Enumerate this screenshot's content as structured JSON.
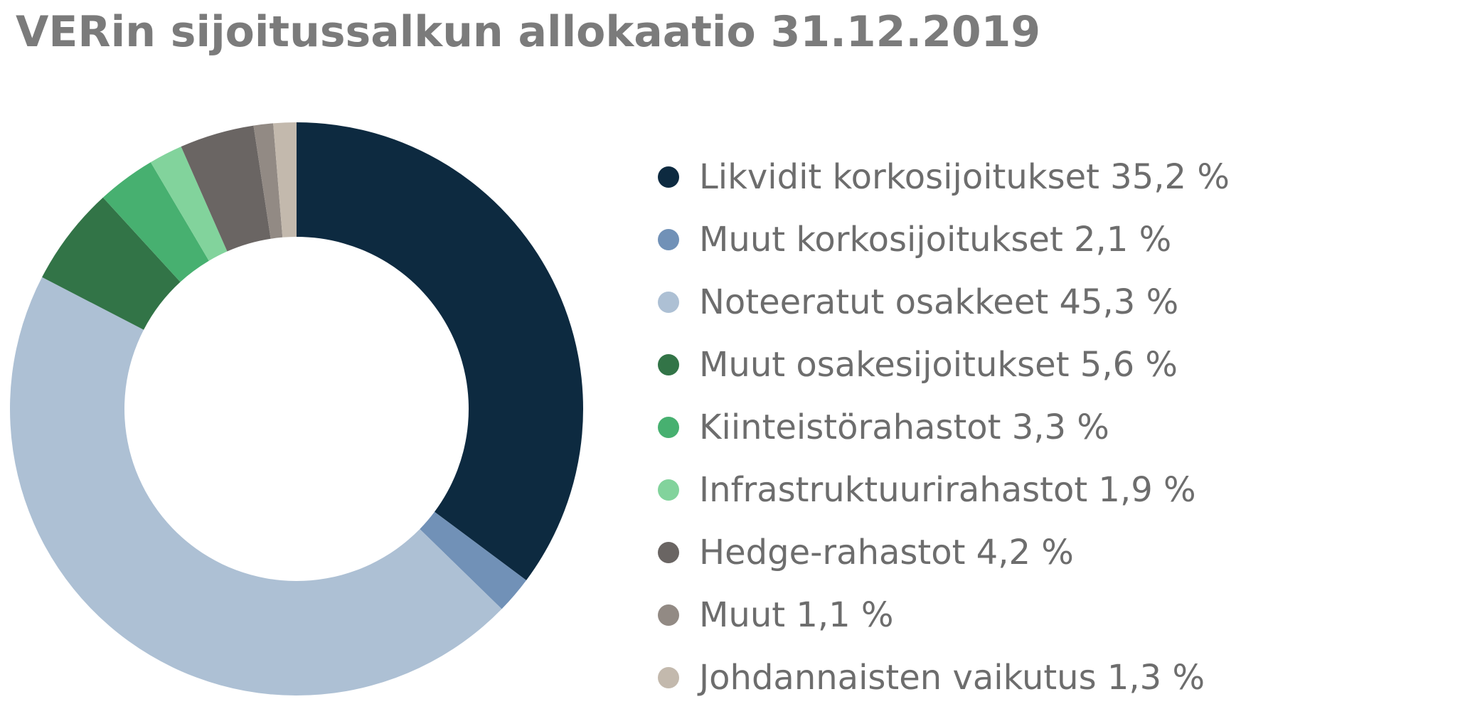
{
  "chart_data": {
    "type": "pie",
    "title": "VERin sijoitussalkun allokaatio 31.12.2019",
    "legend_position": "right",
    "unit": "%",
    "slices": [
      {
        "label": "Likvidit korkosijoitukset 35,2 %",
        "value": 35.2,
        "color": "#0d2a40"
      },
      {
        "label": "Muut korkosijoitukset 2,1 %",
        "value": 2.1,
        "color": "#7191b7"
      },
      {
        "label": "Noteeratut osakkeet 45,3 %",
        "value": 45.3,
        "color": "#adc0d4"
      },
      {
        "label": "Muut osakesijoitukset 5,6 %",
        "value": 5.6,
        "color": "#327447"
      },
      {
        "label": "Kiinteistörahastot 3,3 %",
        "value": 3.3,
        "color": "#47b070"
      },
      {
        "label": "Infrastruktuurirahastot 1,9 %",
        "value": 1.9,
        "color": "#82d39c"
      },
      {
        "label": "Hedge-rahastot 4,2 %",
        "value": 4.2,
        "color": "#6a6563"
      },
      {
        "label": "Muut 1,1 %",
        "value": 1.1,
        "color": "#928a84"
      },
      {
        "label": "Johdannaisten vaikutus 1,3 %",
        "value": 1.3,
        "color": "#c3b9ad"
      }
    ]
  }
}
